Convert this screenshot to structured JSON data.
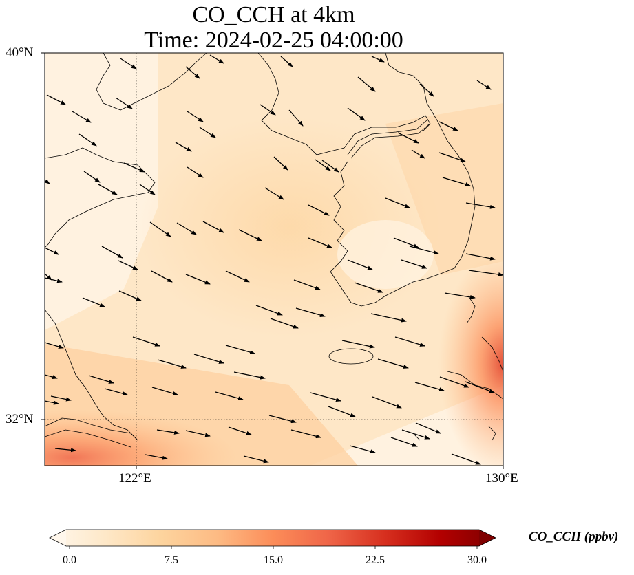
{
  "title": {
    "line1": "CO_CCH at 4km",
    "line2": "Time: 2024-02-25 04:00:00"
  },
  "map": {
    "lat_ticks": [
      {
        "label": "40°N"
      },
      {
        "label": "32°N"
      }
    ],
    "lon_ticks": [
      {
        "label": "122°E"
      },
      {
        "label": "130°E"
      }
    ],
    "lat_range": [
      31,
      40
    ],
    "lon_range": [
      120,
      130
    ],
    "gridlines": "dotted",
    "field_name": "CO_CCH",
    "vector_field": "wind",
    "coastline_color": "#000000"
  },
  "colorbar": {
    "label": "CO_CCH (ppbv)",
    "colormap": "OrRd",
    "extend": "both",
    "vmin": 0.0,
    "vmax": 30.0,
    "ticks": [
      "0.0",
      "7.5",
      "15.0",
      "22.5",
      "30.0"
    ],
    "colors": [
      "#fff7ec",
      "#fee8c8",
      "#fdd49e",
      "#fdbb84",
      "#fc8d59",
      "#ef6548",
      "#d7301f",
      "#b30000",
      "#7f0000"
    ]
  }
}
